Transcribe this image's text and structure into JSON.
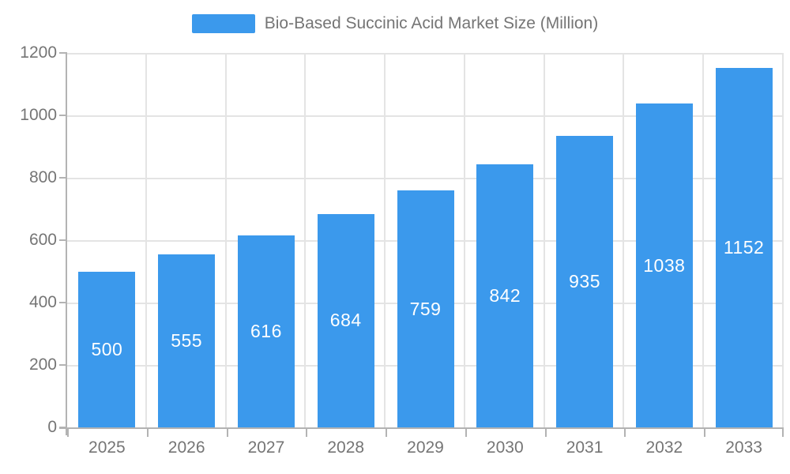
{
  "chart_data": {
    "type": "bar",
    "title": "Bio-Based Succinic Acid Market Size (Million)",
    "categories": [
      "2025",
      "2026",
      "2027",
      "2028",
      "2029",
      "2030",
      "2031",
      "2032",
      "2033"
    ],
    "values": [
      500,
      555,
      616,
      684,
      759,
      842,
      935,
      1038,
      1152
    ],
    "xlabel": "",
    "ylabel": "",
    "ylim": [
      0,
      1200
    ],
    "yticks": [
      0,
      200,
      400,
      600,
      800,
      1000,
      1200
    ],
    "grid": true,
    "legend_position": "top",
    "value_labels": "inside-center",
    "colors": {
      "bar": "#3b99ec",
      "grid": "#e4e4e4",
      "axis": "#b3b3b3",
      "tick_text": "#757575",
      "title_text": "#757575",
      "value_label": "#ffffff",
      "background": "#ffffff"
    }
  }
}
